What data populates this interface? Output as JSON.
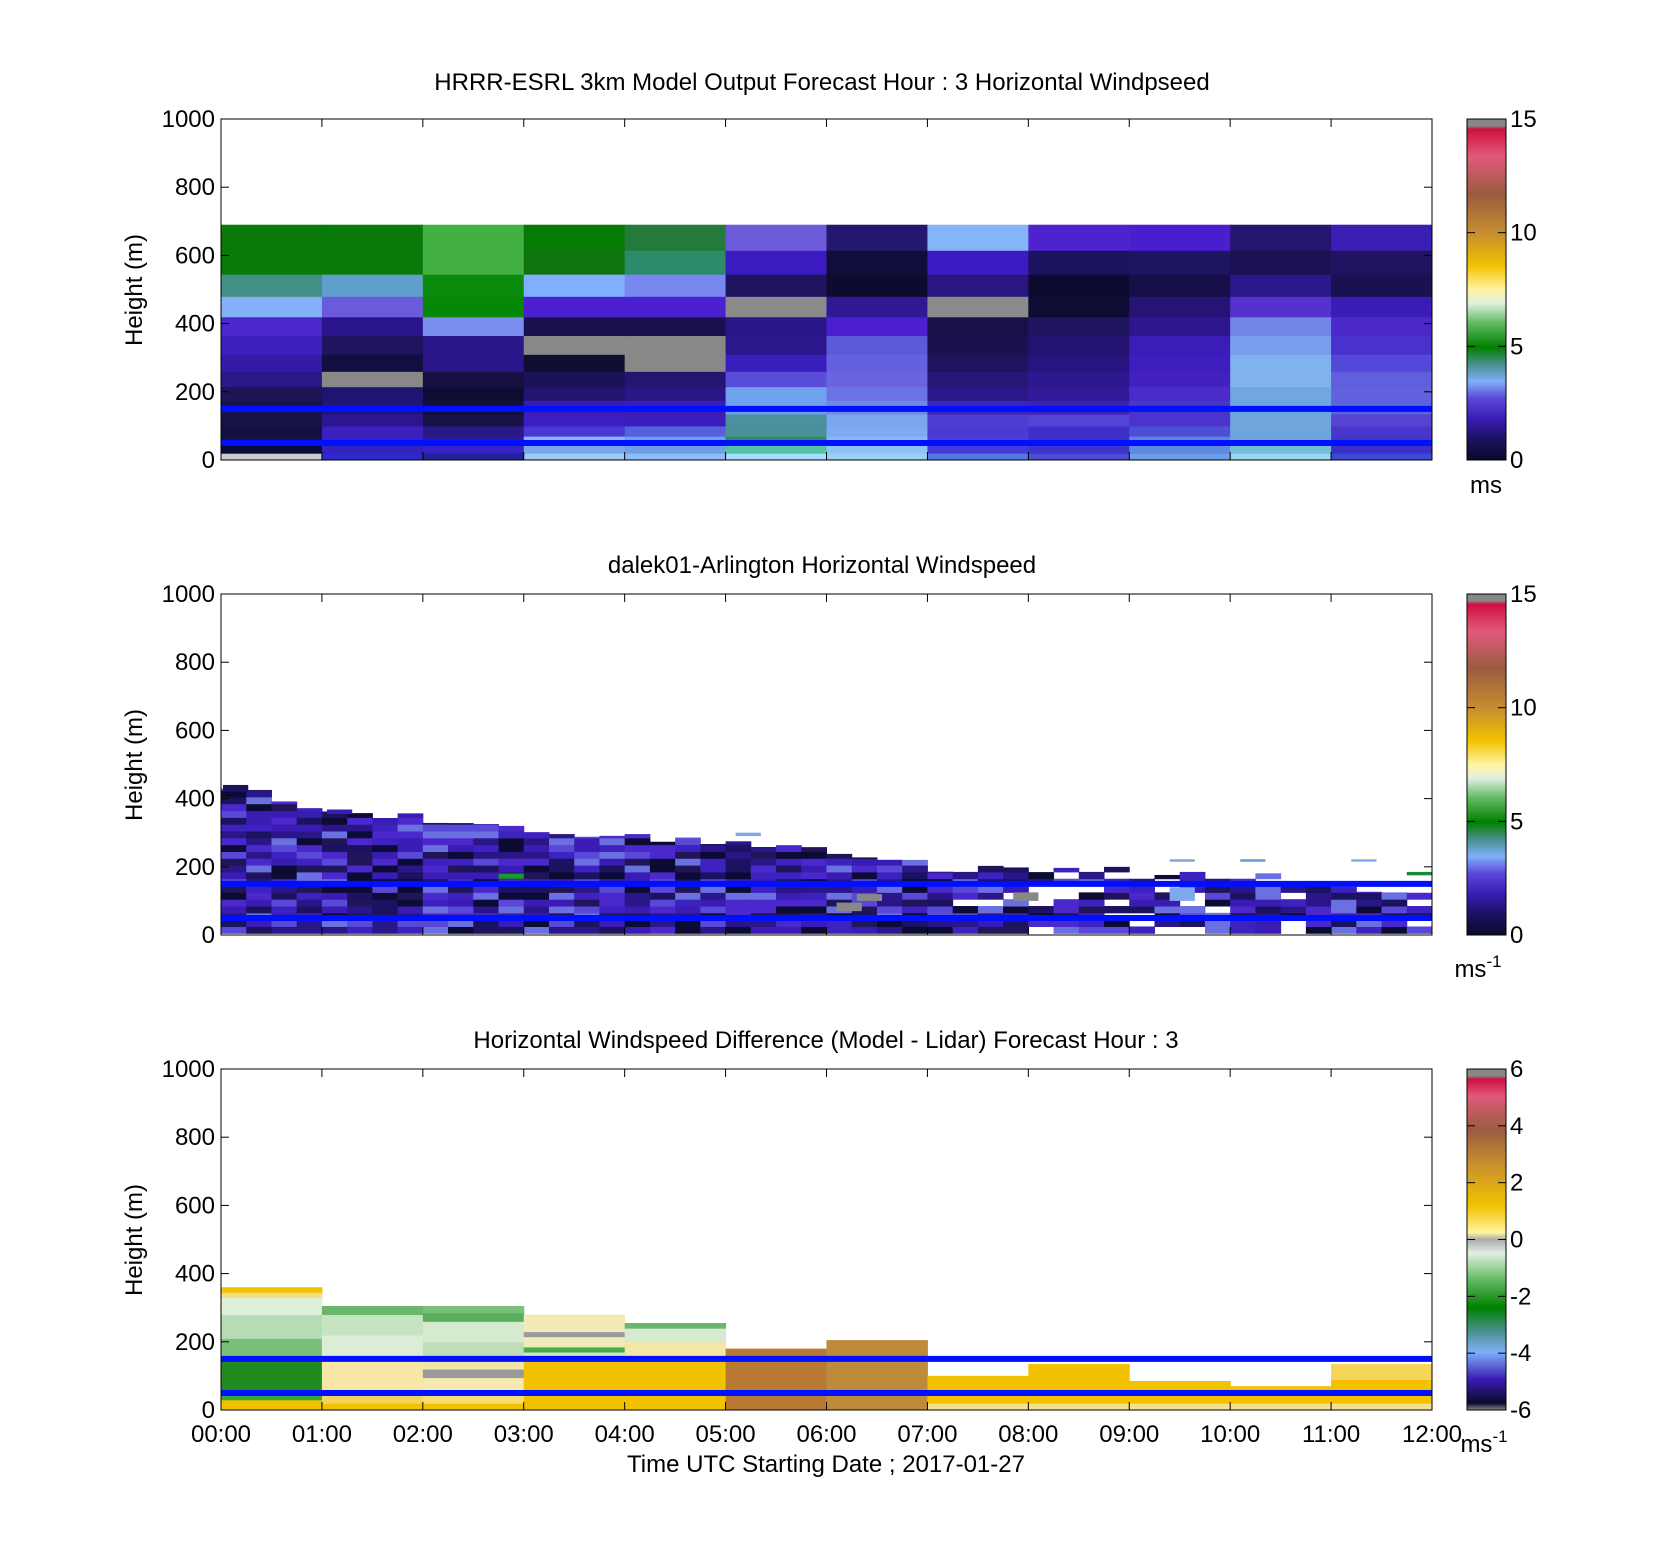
{
  "chart_data": [
    {
      "type": "heatmap",
      "title": "HRRR-ESRL 3km Model Output   Forecast Hour : 3 Horizontal Windpseed",
      "ylabel": "Height (m)",
      "ylim": [
        0,
        1000
      ],
      "yticks": [
        "0",
        "200",
        "400",
        "600",
        "800",
        "1000"
      ],
      "xlim": [
        0,
        12
      ],
      "colorbar": {
        "ticks": [
          "0",
          "5",
          "10",
          "15"
        ],
        "range": [
          0,
          15
        ],
        "unit": "ms"
      },
      "reference_lines_m": [
        150,
        50
      ],
      "hour_starts": [
        0,
        1,
        2,
        3,
        4,
        5,
        6,
        7,
        8,
        9,
        10,
        11
      ],
      "level_edges_m": [
        0,
        20,
        45,
        70,
        100,
        135,
        175,
        215,
        260,
        310,
        365,
        420,
        480,
        545,
        615,
        690,
        780,
        870,
        1000
      ],
      "cells": [
        [
          "#cccccc",
          "#2a2acf",
          "#222298",
          "#9fcaf6",
          "#8fbef7",
          "#a5dcff",
          "#9ad0f5",
          "#5577e4",
          "#4d4dd6",
          "#6d9de8",
          "#9bd6f0",
          "#3a49d8"
        ],
        [
          "#0a0a3a",
          "#3322c0",
          "#3622c8",
          "#77a8ec",
          "#6f9ee8",
          "#55c2a8",
          "#8ec4f5",
          "#443adb",
          "#3b35cc",
          "#5b8ae0",
          "#73bdd8",
          "#3a30c8"
        ],
        [
          "#14124a",
          "#3a21c4",
          "#2d1a9c",
          "#8cb6f0",
          "#6f9ee8",
          "#2e8c5a",
          "#88b8f5",
          "#4a3fd0",
          "#4030c8",
          "#5d86e0",
          "#6aa8d2",
          "#4534c8"
        ],
        [
          "#11103f",
          "#3d1fbe",
          "#2a1888",
          "#4a38d4",
          "#5560de",
          "#4a9098",
          "#7fa9f0",
          "#4c3ad4",
          "#3c30c9",
          "#4e4fd6",
          "#6ba6dc",
          "#4a36cc"
        ],
        [
          "#161347",
          "#2b1690",
          "#161245",
          "#3d1dc0",
          "#3a1dbc",
          "#4c8f9e",
          "#79a6ee",
          "#4d3fd1",
          "#5244d4",
          "#4a34cc",
          "#6fa5dc",
          "#5544d2"
        ],
        [
          "#181346",
          "#24137a",
          "#101038",
          "#3a1bb4",
          "#3c1cba",
          "#6ea0ec",
          "#6f8be6",
          "#3c25b8",
          "#3c24b0",
          "#4a34cc",
          "#6ca8dc",
          "#5d62de"
        ],
        [
          "#1d1554",
          "#1f1570",
          "#0d0d33",
          "#231470",
          "#2a1686",
          "#6fa3ee",
          "#6a74e4",
          "#2a1888",
          "#32199a",
          "#4a2cc8",
          "#6fa8e0",
          "#6262de"
        ],
        [
          "#2a1886",
          "#888888",
          "#151040",
          "#1c1258",
          "#241570",
          "#5a4ed8",
          "#6a64e0",
          "#261676",
          "#2d1890",
          "#4320c0",
          "#80b2ee",
          "#6060de"
        ],
        [
          "#341aa6",
          "#101040",
          "#2a168a",
          "#0e0e30",
          "#888888",
          "#3a1ebd",
          "#6560de",
          "#1e1460",
          "#281580",
          "#3e1dbf",
          "#7eb2f0",
          "#5548d8"
        ],
        [
          "#3d1fbe",
          "#1f1460",
          "#2a168a",
          "#888888",
          "#888888",
          "#2c168c",
          "#5d5ada",
          "#1a1250",
          "#241270",
          "#3a1cb8",
          "#7a9eee",
          "#4a30cc"
        ],
        [
          "#4a28cc",
          "#2a158e",
          "#7a8ff0",
          "#1a1250",
          "#1a1250",
          "#2a168a",
          "#4b1fcf",
          "#18104a",
          "#1f1560",
          "#2e168e",
          "#7485e8",
          "#4b28c8"
        ],
        [
          "#83b0f6",
          "#6a5bdc",
          "#058805",
          "#4a20cf",
          "#4a20cf",
          "#8a8a8a",
          "#2f1796",
          "#8a8a8a",
          "#0e0c33",
          "#251474",
          "#5532d0",
          "#3a1cb4"
        ],
        [
          "#409085",
          "#609fcc",
          "#0b8b0b",
          "#80b0ff",
          "#7788ee",
          "#1f1460",
          "#0c0c30",
          "#2a1680",
          "#0d0c30",
          "#160f48",
          "#2b168a",
          "#1a1250"
        ],
        [
          "#077a07",
          "#077a07",
          "#43b043",
          "#107510",
          "#2d8a6a",
          "#3b1ac0",
          "#0f0d3a",
          "#3c1ac4",
          "#1c1360",
          "#1d1462",
          "#1a1252",
          "#201462"
        ],
        [
          "#077a07",
          "#077a07",
          "#43b043",
          "#057a05",
          "#237a3a",
          "#6b5bd8",
          "#24176e",
          "#86b4f8",
          "#4c23cc",
          "#4a1ecf",
          "#261670",
          "#3a1eb4"
        ]
      ]
    },
    {
      "type": "heatmap",
      "title": "dalek01-Arlington  Horizontal Windspeed",
      "ylabel": "Height (m)",
      "ylim": [
        0,
        1000
      ],
      "yticks": [
        "0",
        "200",
        "400",
        "600",
        "800",
        "1000"
      ],
      "xlim": [
        0,
        12
      ],
      "colorbar": {
        "ticks": [
          "0",
          "5",
          "10",
          "15"
        ],
        "range": [
          0,
          15
        ],
        "unit": "ms",
        "unit_exp": "-1"
      },
      "reference_lines_m": [
        150,
        50
      ],
      "profile_top_m": [
        430,
        355,
        340,
        300,
        285,
        280,
        240,
        200,
        195,
        190,
        180,
        150,
        110
      ],
      "palette": [
        "#0b0b35",
        "#1b1260",
        "#2a1688",
        "#3a1cb4",
        "#4a28cc",
        "#5a48d8",
        "#3d22c0",
        "#21155a",
        "#6a70e0"
      ],
      "accent_cells": [
        {
          "t": 0.02,
          "h": [
            420,
            440
          ],
          "c": "#1b1260"
        },
        {
          "t": 1.05,
          "h": [
            355,
            368
          ],
          "c": "#3a1cb4"
        },
        {
          "t": 2.75,
          "h": [
            165,
            180
          ],
          "c": "#1a9a2a"
        },
        {
          "t": 5.1,
          "h": [
            290,
            300
          ],
          "c": "#7fa8ee"
        },
        {
          "t": 6.1,
          "h": [
            70,
            95
          ],
          "c": "#888888"
        },
        {
          "t": 6.3,
          "h": [
            100,
            120
          ],
          "c": "#888888"
        },
        {
          "t": 7.85,
          "h": [
            100,
            125
          ],
          "c": "#888888"
        },
        {
          "t": 9.4,
          "h": [
            100,
            140
          ],
          "c": "#7fa8ee"
        },
        {
          "t": 9.4,
          "h": [
            215,
            222
          ],
          "c": "#7aa6d8"
        },
        {
          "t": 10.1,
          "h": [
            215,
            222
          ],
          "c": "#5a9ad0"
        },
        {
          "t": 11.2,
          "h": [
            215,
            222
          ],
          "c": "#7fa8ee"
        },
        {
          "t": 11.75,
          "h": [
            175,
            185
          ],
          "c": "#1a8a3a"
        }
      ]
    },
    {
      "type": "heatmap",
      "title": "Horizontal Windspeed Difference (Model - Lidar) Forecast Hour : 3",
      "ylabel": "Height (m)",
      "xlabel": "Time UTC  Starting Date ; 2017-01-27",
      "ylim": [
        0,
        1000
      ],
      "yticks": [
        "0",
        "200",
        "400",
        "600",
        "800",
        "1000"
      ],
      "xlim": [
        0,
        12
      ],
      "xticks": [
        "00:00",
        "01:00",
        "02:00",
        "03:00",
        "04:00",
        "05:00",
        "06:00",
        "07:00",
        "08:00",
        "09:00",
        "10:00",
        "11:00",
        "12:00"
      ],
      "colorbar": {
        "ticks": [
          "-6",
          "-4",
          "-2",
          "0",
          "2",
          "4",
          "6"
        ],
        "range": [
          -6,
          6
        ],
        "unit": "ms",
        "unit_exp": "-1"
      },
      "reference_lines_m": [
        150,
        50
      ],
      "profiles": [
        {
          "top": 360,
          "bands": [
            [
              0,
              30,
              "#f2c200"
            ],
            [
              30,
              60,
              "#36a836"
            ],
            [
              60,
              150,
              "#1e8c1e"
            ],
            [
              150,
              210,
              "#7ac07a"
            ],
            [
              210,
              280,
              "#b6dcb6"
            ],
            [
              280,
              330,
              "#dff0da"
            ],
            [
              330,
              345,
              "#f0e08a"
            ],
            [
              345,
              360,
              "#f2c200"
            ]
          ]
        },
        {
          "top": 305,
          "bands": [
            [
              0,
              20,
              "#f2c200"
            ],
            [
              20,
              60,
              "#f5d35a"
            ],
            [
              60,
              150,
              "#f7e6a6"
            ],
            [
              150,
              220,
              "#dcecd6"
            ],
            [
              220,
              280,
              "#c6e3c2"
            ],
            [
              280,
              305,
              "#6ab66a"
            ]
          ]
        },
        {
          "top": 305,
          "bands": [
            [
              0,
              20,
              "#f2c200"
            ],
            [
              20,
              60,
              "#f7dd70"
            ],
            [
              60,
              95,
              "#f5e8b0"
            ],
            [
              95,
              120,
              "#9a9a9a"
            ],
            [
              120,
              150,
              "#f0e6a6"
            ],
            [
              150,
              200,
              "#c0dcb8"
            ],
            [
              200,
              260,
              "#d6ead0"
            ],
            [
              260,
              285,
              "#5ab05a"
            ],
            [
              285,
              305,
              "#7ac07a"
            ]
          ]
        },
        {
          "top": 280,
          "bands": [
            [
              0,
              20,
              "#f2c200"
            ],
            [
              20,
              150,
              "#f2c200"
            ],
            [
              150,
              170,
              "#d0e6c8"
            ],
            [
              170,
              185,
              "#4aaa4a"
            ],
            [
              185,
              215,
              "#f3eaba"
            ],
            [
              215,
              230,
              "#9a9a9a"
            ],
            [
              230,
              280,
              "#f3eab8"
            ]
          ]
        },
        {
          "top": 255,
          "bands": [
            [
              0,
              20,
              "#f2c200"
            ],
            [
              20,
              150,
              "#f2c200"
            ],
            [
              150,
              200,
              "#f3e6a6"
            ],
            [
              200,
              240,
              "#d6ead0"
            ],
            [
              240,
              255,
              "#6ab66a"
            ]
          ]
        },
        {
          "top": 180,
          "bands": [
            [
              0,
              180,
              "#b87a33"
            ]
          ]
        },
        {
          "top": 205,
          "bands": [
            [
              0,
              205,
              "#c08a3b"
            ]
          ]
        },
        {
          "top": 100,
          "bands": [
            [
              0,
              20,
              "#f7e08a"
            ],
            [
              20,
              100,
              "#f2c200"
            ]
          ]
        },
        {
          "top": 135,
          "bands": [
            [
              0,
              20,
              "#f7e08a"
            ],
            [
              20,
              135,
              "#f2c200"
            ]
          ]
        },
        {
          "top": 85,
          "bands": [
            [
              0,
              20,
              "#f7e08a"
            ],
            [
              20,
              85,
              "#f2c200"
            ]
          ]
        },
        {
          "top": 70,
          "bands": [
            [
              0,
              20,
              "#f7e08a"
            ],
            [
              20,
              70,
              "#f2c200"
            ]
          ]
        },
        {
          "top": 135,
          "bands": [
            [
              0,
              20,
              "#f7e08a"
            ],
            [
              20,
              90,
              "#f2c200"
            ],
            [
              90,
              135,
              "#f5d65a"
            ]
          ]
        }
      ]
    }
  ]
}
